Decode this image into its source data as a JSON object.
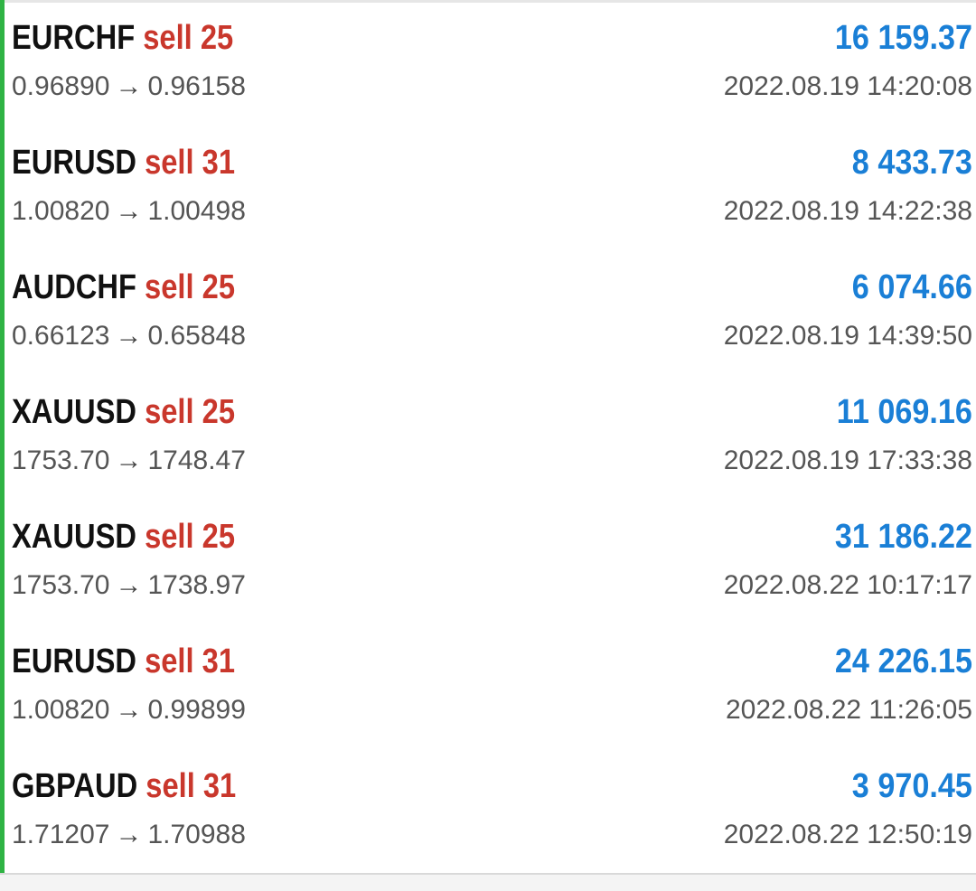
{
  "trades": [
    {
      "symbol": "EURCHF",
      "side": "sell",
      "volume": "25",
      "open_price": "0.96890",
      "arrow": "→",
      "close_price": "0.96158",
      "profit": "16 159.37",
      "time": "2022.08.19 14:20:08"
    },
    {
      "symbol": "EURUSD",
      "side": "sell",
      "volume": "31",
      "open_price": "1.00820",
      "arrow": "→",
      "close_price": "1.00498",
      "profit": "8 433.73",
      "time": "2022.08.19 14:22:38"
    },
    {
      "symbol": "AUDCHF",
      "side": "sell",
      "volume": "25",
      "open_price": "0.66123",
      "arrow": "→",
      "close_price": "0.65848",
      "profit": "6 074.66",
      "time": "2022.08.19 14:39:50"
    },
    {
      "symbol": "XAUUSD",
      "side": "sell",
      "volume": "25",
      "open_price": "1753.70",
      "arrow": "→",
      "close_price": "1748.47",
      "profit": "11 069.16",
      "time": "2022.08.19 17:33:38"
    },
    {
      "symbol": "XAUUSD",
      "side": "sell",
      "volume": "25",
      "open_price": "1753.70",
      "arrow": "→",
      "close_price": "1738.97",
      "profit": "31 186.22",
      "time": "2022.08.22 10:17:17"
    },
    {
      "symbol": "EURUSD",
      "side": "sell",
      "volume": "31",
      "open_price": "1.00820",
      "arrow": "→",
      "close_price": "0.99899",
      "profit": "24 226.15",
      "time": "2022.08.22 11:26:05"
    },
    {
      "symbol": "GBPAUD",
      "side": "sell",
      "volume": "31",
      "open_price": "1.71207",
      "arrow": "→",
      "close_price": "1.70988",
      "profit": "3 970.45",
      "time": "2022.08.22 12:50:19"
    }
  ],
  "colors": {
    "accent_bar": "#2fb344",
    "sell": "#c9372c",
    "profit": "#1a7fd6",
    "symbol": "#111111",
    "secondary_text": "#555555"
  }
}
